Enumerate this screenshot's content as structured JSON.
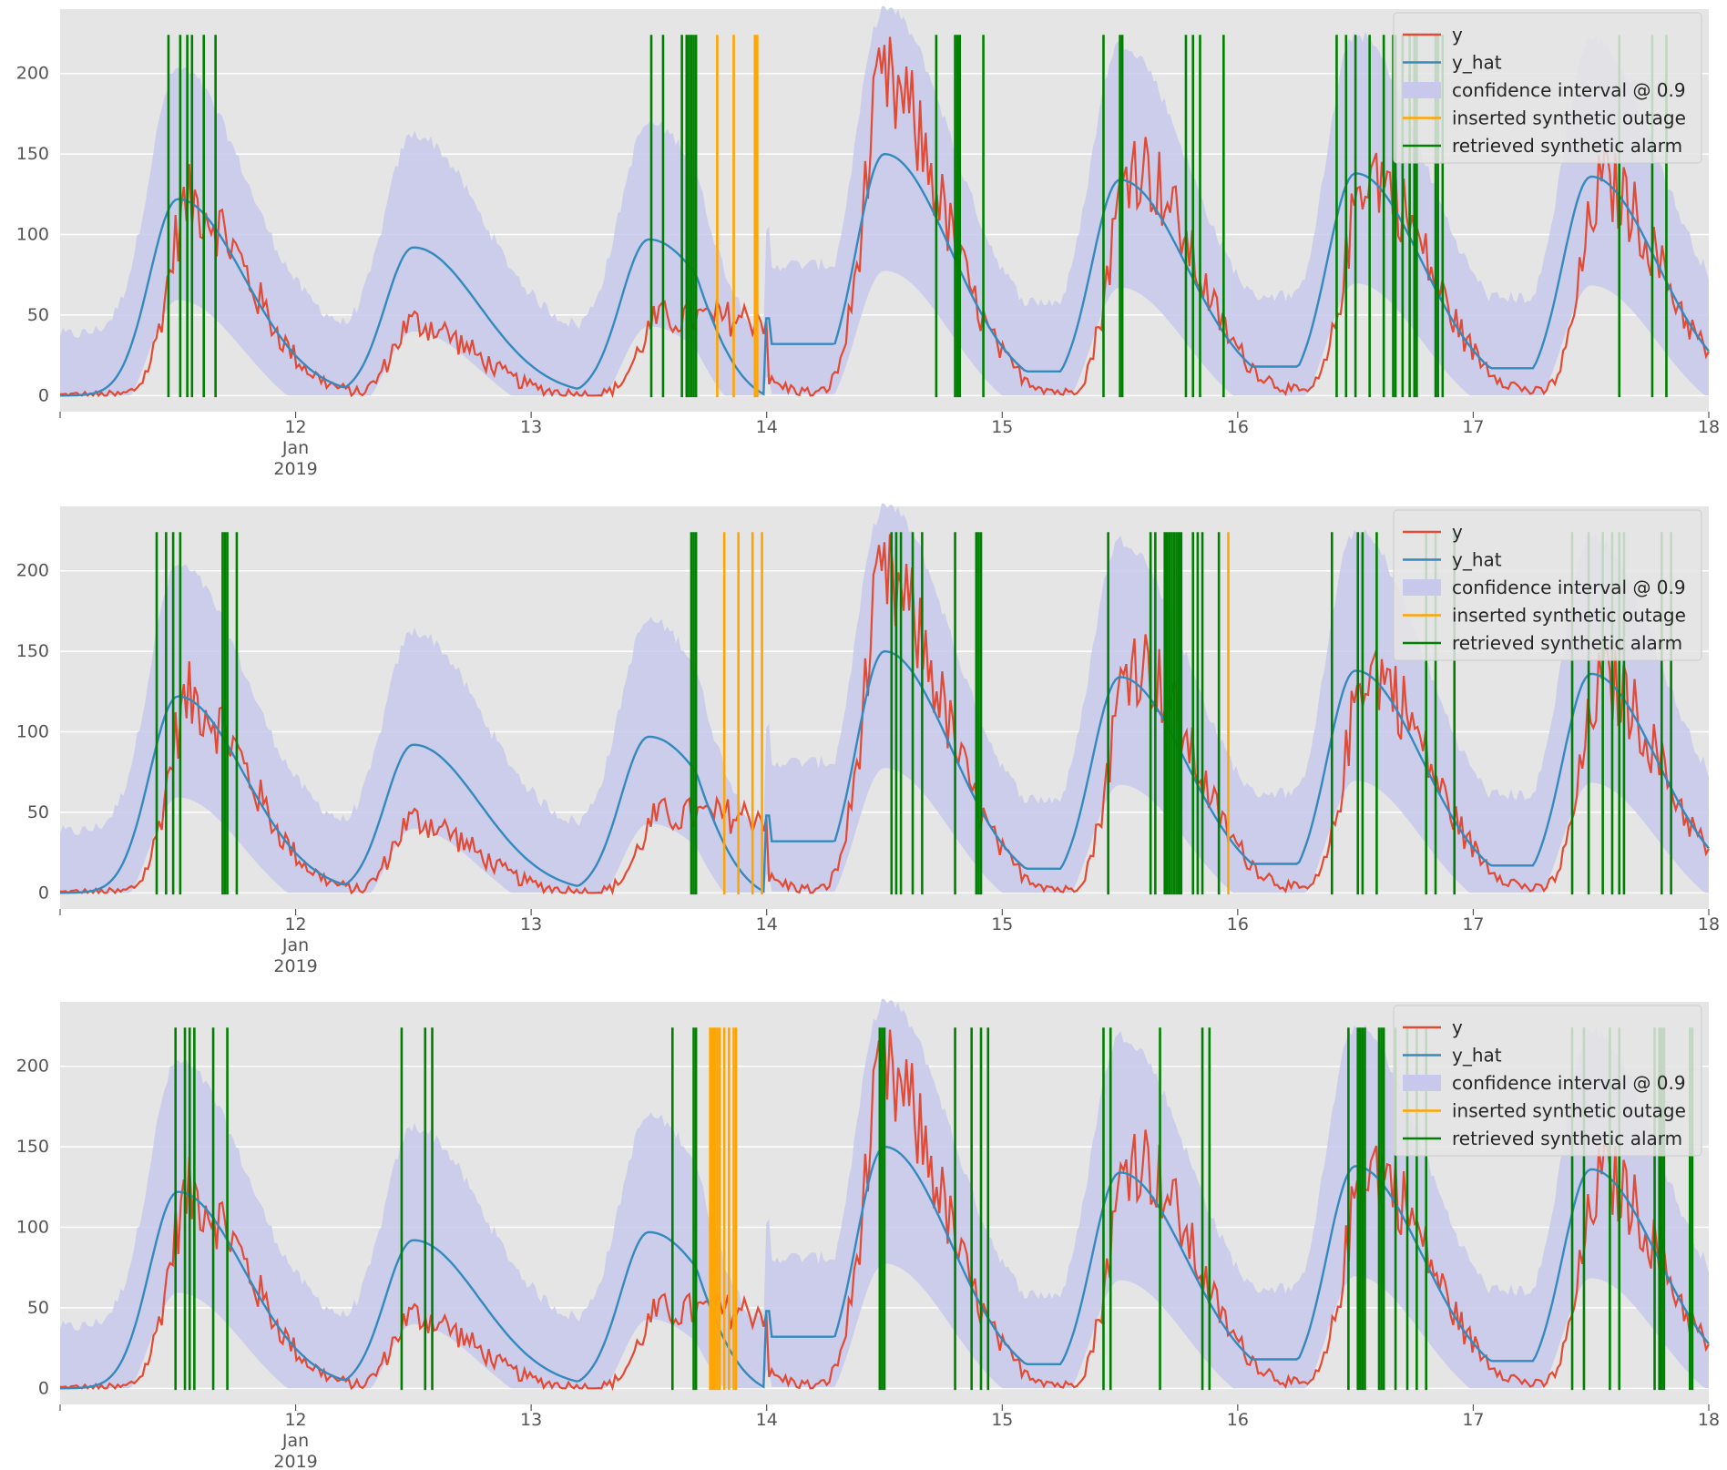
{
  "colors": {
    "background": "#e5e5e5",
    "grid": "#ffffff",
    "y": "#e24a33",
    "y_hat": "#348abd",
    "confidence": "#c8c8ec",
    "outage": "#ffa500",
    "alarm": "#008000"
  },
  "chart_data": [
    {
      "type": "line",
      "x_axis": {
        "range": [
          11.0,
          18.0
        ],
        "ticks": [
          "12",
          "13",
          "14",
          "15",
          "16",
          "17",
          "18"
        ],
        "tick_values": [
          12,
          13,
          14,
          15,
          16,
          17,
          18
        ],
        "secondary_label": [
          "Jan",
          "2019"
        ],
        "unit": "day of January 2019"
      },
      "y_axis": {
        "range": [
          -10,
          240
        ],
        "ticks": [
          "0",
          "50",
          "100",
          "150",
          "200"
        ],
        "tick_values": [
          0,
          50,
          100,
          150,
          200
        ]
      },
      "grid": true,
      "legend": {
        "placement": "top-right",
        "entries": [
          "y",
          "y_hat",
          "confidence interval @ 0.9",
          "inserted synthetic outage",
          "retrieved synthetic alarm"
        ]
      },
      "series": [
        {
          "name": "y",
          "kind": "line",
          "color": "#e24a33"
        },
        {
          "name": "y_hat",
          "kind": "line",
          "color": "#348abd"
        },
        {
          "name": "confidence interval @ 0.9",
          "kind": "band",
          "color": "#c8c8ec"
        }
      ],
      "outages": [
        13.79,
        13.86,
        13.95,
        13.96
      ],
      "alarms": [
        11.46,
        11.51,
        11.54,
        11.56,
        11.61,
        11.66,
        13.51,
        13.56,
        13.64,
        13.66,
        13.67,
        13.68,
        13.69,
        13.7,
        14.72,
        14.8,
        14.81,
        14.82,
        14.92,
        15.43,
        15.5,
        15.51,
        15.78,
        15.81,
        15.84,
        15.94,
        16.42,
        16.46,
        16.5,
        16.56,
        16.62,
        16.66,
        16.67,
        16.7,
        16.73,
        16.75,
        16.76,
        16.84,
        16.85,
        16.87,
        17.62,
        17.76,
        17.82
      ]
    },
    {
      "type": "line",
      "x_axis": {
        "range": [
          11.0,
          18.0
        ],
        "ticks": [
          "12",
          "13",
          "14",
          "15",
          "16",
          "17",
          "18"
        ],
        "tick_values": [
          12,
          13,
          14,
          15,
          16,
          17,
          18
        ],
        "secondary_label": [
          "Jan",
          "2019"
        ],
        "unit": "day of January 2019"
      },
      "y_axis": {
        "range": [
          -10,
          240
        ],
        "ticks": [
          "0",
          "50",
          "100",
          "150",
          "200"
        ],
        "tick_values": [
          0,
          50,
          100,
          150,
          200
        ]
      },
      "grid": true,
      "legend": {
        "placement": "top-right",
        "entries": [
          "y",
          "y_hat",
          "confidence interval @ 0.9",
          "inserted synthetic outage",
          "retrieved synthetic alarm"
        ]
      },
      "series": [
        {
          "name": "y",
          "kind": "line",
          "color": "#e24a33"
        },
        {
          "name": "y_hat",
          "kind": "line",
          "color": "#348abd"
        },
        {
          "name": "confidence interval @ 0.9",
          "kind": "band",
          "color": "#c8c8ec"
        }
      ],
      "outages": [
        13.82,
        13.88,
        13.94,
        13.98,
        15.96
      ],
      "alarms": [
        11.41,
        11.45,
        11.48,
        11.51,
        11.69,
        11.7,
        11.71,
        11.75,
        13.68,
        13.69,
        13.7,
        14.53,
        14.55,
        14.57,
        14.62,
        14.66,
        14.8,
        14.89,
        14.9,
        14.91,
        15.45,
        15.63,
        15.65,
        15.69,
        15.7,
        15.71,
        15.72,
        15.73,
        15.74,
        15.75,
        15.76,
        15.81,
        15.83,
        15.85,
        15.92,
        16.4,
        16.51,
        16.53,
        16.59,
        16.8,
        16.84,
        16.92,
        17.42,
        17.49,
        17.55,
        17.59,
        17.62,
        17.64,
        17.8,
        17.84
      ]
    },
    {
      "type": "line",
      "x_axis": {
        "range": [
          11.0,
          18.0
        ],
        "ticks": [
          "12",
          "13",
          "14",
          "15",
          "16",
          "17",
          "18"
        ],
        "tick_values": [
          12,
          13,
          14,
          15,
          16,
          17,
          18
        ],
        "secondary_label": [
          "Jan",
          "2019"
        ],
        "unit": "day of January 2019"
      },
      "y_axis": {
        "range": [
          -10,
          240
        ],
        "ticks": [
          "0",
          "50",
          "100",
          "150",
          "200"
        ],
        "tick_values": [
          0,
          50,
          100,
          150,
          200
        ]
      },
      "grid": true,
      "legend": {
        "placement": "top-right",
        "entries": [
          "y",
          "y_hat",
          "confidence interval @ 0.9",
          "inserted synthetic outage",
          "retrieved synthetic alarm"
        ]
      },
      "series": [
        {
          "name": "y",
          "kind": "line",
          "color": "#e24a33"
        },
        {
          "name": "y_hat",
          "kind": "line",
          "color": "#348abd"
        },
        {
          "name": "confidence interval @ 0.9",
          "kind": "band",
          "color": "#c8c8ec"
        }
      ],
      "outages": [
        13.76,
        13.77,
        13.78,
        13.79,
        13.8,
        13.82,
        13.84,
        13.86,
        13.87
      ],
      "alarms": [
        11.49,
        11.53,
        11.55,
        11.57,
        11.65,
        11.71,
        12.45,
        12.55,
        12.58,
        13.6,
        13.69,
        13.7,
        14.48,
        14.49,
        14.5,
        14.8,
        14.87,
        14.91,
        14.94,
        15.43,
        15.46,
        15.67,
        15.85,
        15.88,
        16.47,
        16.51,
        16.52,
        16.53,
        16.54,
        16.6,
        16.61,
        16.62,
        16.67,
        16.72,
        16.76,
        16.8,
        17.42,
        17.47,
        17.58,
        17.62,
        17.77,
        17.79,
        17.8,
        17.81,
        17.92,
        17.93
      ]
    }
  ]
}
